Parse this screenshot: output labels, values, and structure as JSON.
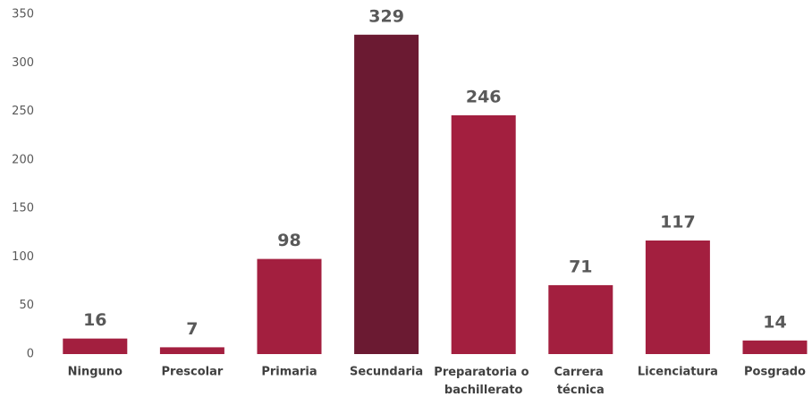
{
  "chart_data": {
    "type": "bar",
    "categories": [
      "Ninguno",
      "Prescolar",
      "Primaria",
      "Secundaria",
      "Preparatoria o bachillerato",
      "Carrera técnica",
      "Licenciatura",
      "Posgrado"
    ],
    "values": [
      16,
      7,
      98,
      329,
      246,
      71,
      117,
      14
    ],
    "colors": [
      "#a31f3f",
      "#a31f3f",
      "#a31f3f",
      "#6b1a32",
      "#a31f3f",
      "#a31f3f",
      "#a31f3f",
      "#a31f3f"
    ],
    "ylim": [
      0,
      350
    ],
    "yticks": [
      0,
      50,
      100,
      150,
      200,
      250,
      300,
      350
    ],
    "grid": false
  }
}
